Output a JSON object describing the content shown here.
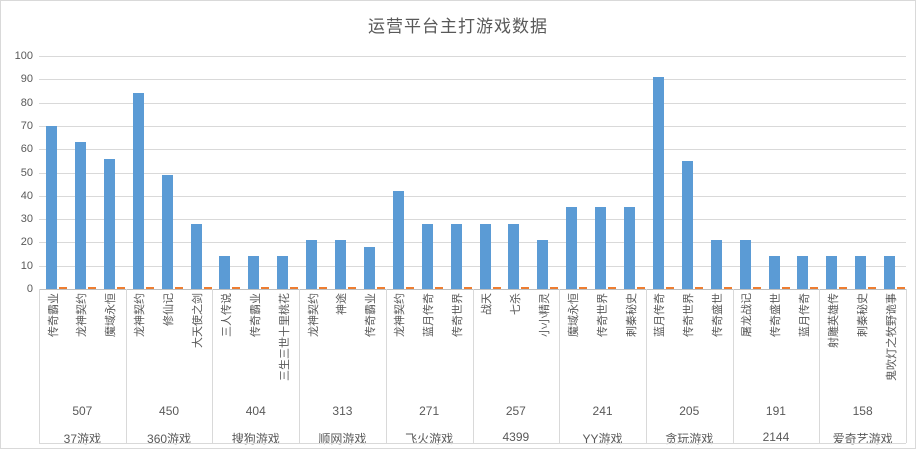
{
  "chart_data": {
    "type": "bar",
    "title": "运营平台主打游戏数据",
    "xlabel": "",
    "ylabel": "",
    "ylim": [
      0,
      100
    ],
    "y_ticks": [
      0,
      10,
      20,
      30,
      40,
      50,
      60,
      70,
      80,
      90,
      100
    ],
    "grid": true,
    "legend": false,
    "colors": {
      "primary_series": "#5b9bd5",
      "secondary_series": "#ed7d31",
      "gridline": "#d9d9d9",
      "axis_line": "#bfbfbf",
      "text": "#595959",
      "background": "#ffffff"
    },
    "groups": [
      {
        "platform": "37游戏",
        "total": "507",
        "games": [
          "传奇霸业",
          "龙神契约",
          "魔域永恒"
        ],
        "values": [
          70,
          63,
          56
        ],
        "secondary_values": [
          1,
          1,
          1
        ]
      },
      {
        "platform": "360游戏",
        "total": "450",
        "games": [
          "龙神契约",
          "修仙记",
          "大天使之剑"
        ],
        "values": [
          84,
          49,
          28
        ],
        "secondary_values": [
          1,
          1,
          1
        ]
      },
      {
        "platform": "搜狗游戏",
        "total": "404",
        "games": [
          "三人传说",
          "传奇霸业",
          "三生三世十里桃花"
        ],
        "values": [
          14,
          14,
          14
        ],
        "secondary_values": [
          1,
          1,
          1
        ]
      },
      {
        "platform": "顺网游戏",
        "total": "313",
        "games": [
          "龙神契约",
          "神途",
          "传奇霸业"
        ],
        "values": [
          21,
          21,
          18
        ],
        "secondary_values": [
          1,
          1,
          1
        ]
      },
      {
        "platform": "飞火游戏",
        "total": "271",
        "games": [
          "龙神契约",
          "蓝月传奇",
          "传奇世界"
        ],
        "values": [
          42,
          28,
          28
        ],
        "secondary_values": [
          1,
          1,
          1
        ]
      },
      {
        "platform": "4399",
        "total": "257",
        "games": [
          "战天",
          "七杀",
          "小小精灵"
        ],
        "values": [
          28,
          28,
          21
        ],
        "secondary_values": [
          1,
          1,
          1
        ]
      },
      {
        "platform": "YY游戏",
        "total": "241",
        "games": [
          "魔域永恒",
          "传奇世界",
          "刺秦秘史"
        ],
        "values": [
          35,
          35,
          35
        ],
        "secondary_values": [
          1,
          1,
          1
        ]
      },
      {
        "platform": "贪玩游戏",
        "total": "205",
        "games": [
          "蓝月传奇",
          "传奇世界",
          "传奇盛世"
        ],
        "values": [
          91,
          55,
          21
        ],
        "secondary_values": [
          1,
          1,
          1
        ]
      },
      {
        "platform": "2144",
        "total": "191",
        "games": [
          "屠龙战记",
          "传奇盛世",
          "蓝月传奇"
        ],
        "values": [
          21,
          14,
          14
        ],
        "secondary_values": [
          1,
          1,
          1
        ]
      },
      {
        "platform": "爱奇艺游戏",
        "total": "158",
        "games": [
          "射雕英雄传",
          "刺秦秘史",
          "鬼吹灯之牧野诡事"
        ],
        "values": [
          14,
          14,
          14
        ],
        "secondary_values": [
          1,
          1,
          1
        ]
      }
    ]
  }
}
